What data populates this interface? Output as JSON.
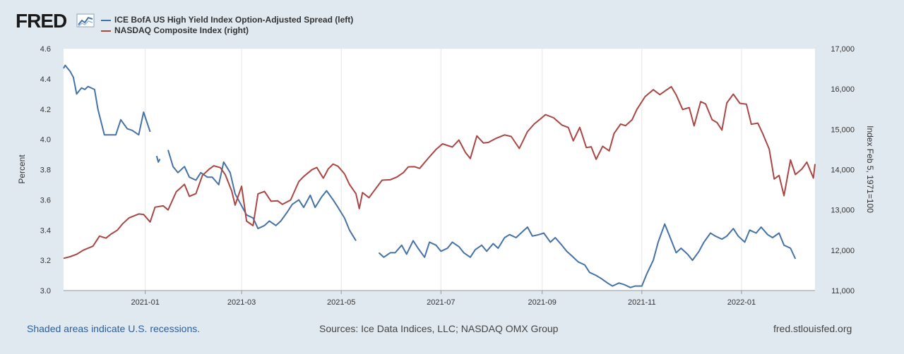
{
  "header": {
    "logo_text": "FRED",
    "logo_icon": "line-graph-icon"
  },
  "legend": [
    {
      "label": "ICE BofA US High Yield Index Option-Adjusted Spread (left)",
      "color": "#4572a7"
    },
    {
      "label": "NASDAQ Composite Index (right)",
      "color": "#aa4643"
    }
  ],
  "footer": {
    "recessions_note": "Shaded areas indicate U.S. recessions.",
    "sources": "Sources: Ice Data Indices, LLC; NASDAQ OMX Group",
    "site": "fred.stlouisfed.org"
  },
  "chart_data": {
    "type": "line",
    "x_range": [
      "2020-11-12",
      "2022-02-15"
    ],
    "x_ticks": [
      "2021-01",
      "2021-03",
      "2021-05",
      "2021-07",
      "2021-09",
      "2021-11",
      "2022-01"
    ],
    "y_left": {
      "label": "Percent",
      "range": [
        3.0,
        4.6
      ],
      "ticks": [
        "3.0",
        "3.2",
        "3.4",
        "3.6",
        "3.8",
        "4.0",
        "4.2",
        "4.4",
        "4.6"
      ]
    },
    "y_right": {
      "label": "Index Feb 5, 1971=100",
      "range": [
        11000,
        17000
      ],
      "ticks": [
        "11,000",
        "12,000",
        "13,000",
        "14,000",
        "15,000",
        "16,000",
        "17,000"
      ]
    },
    "grid": "vertical",
    "series": [
      {
        "name": "ICE BofA US High Yield Index Option-Adjusted Spread (left)",
        "axis": "left",
        "color": "#4572a7",
        "points": [
          [
            "2020-11-12",
            4.47
          ],
          [
            "2020-11-13",
            4.49
          ],
          [
            "2020-11-16",
            4.45
          ],
          [
            "2020-11-18",
            4.41
          ],
          [
            "2020-11-20",
            4.3
          ],
          [
            "2020-11-23",
            4.34
          ],
          [
            "2020-11-25",
            4.33
          ],
          [
            "2020-11-27",
            4.35
          ],
          [
            "2020-12-01",
            4.33
          ],
          [
            "2020-12-03",
            4.2
          ],
          [
            "2020-12-07",
            4.03
          ],
          [
            "2020-12-10",
            4.03
          ],
          [
            "2020-12-14",
            4.03
          ],
          [
            "2020-12-17",
            4.13
          ],
          [
            "2020-12-21",
            4.07
          ],
          [
            "2020-12-24",
            4.06
          ],
          [
            "2020-12-28",
            4.03
          ],
          [
            "2020-12-31",
            4.18
          ],
          [
            "2021-01-04",
            4.05
          ],
          null,
          [
            "2021-01-08",
            3.89
          ],
          [
            "2021-01-09",
            3.85
          ],
          [
            "2021-01-10",
            3.87
          ],
          null,
          [
            "2021-01-15",
            3.93
          ],
          [
            "2021-01-18",
            3.82
          ],
          [
            "2021-01-21",
            3.78
          ],
          [
            "2021-01-25",
            3.82
          ],
          [
            "2021-01-28",
            3.75
          ],
          [
            "2021-02-01",
            3.73
          ],
          [
            "2021-02-04",
            3.78
          ],
          [
            "2021-02-08",
            3.75
          ],
          [
            "2021-02-11",
            3.75
          ],
          [
            "2021-02-15",
            3.7
          ],
          [
            "2021-02-18",
            3.85
          ],
          [
            "2021-02-22",
            3.78
          ],
          [
            "2021-02-25",
            3.64
          ],
          [
            "2021-03-01",
            3.56
          ],
          [
            "2021-03-04",
            3.5
          ],
          [
            "2021-03-08",
            3.48
          ],
          [
            "2021-03-11",
            3.41
          ],
          [
            "2021-03-15",
            3.43
          ],
          [
            "2021-03-18",
            3.46
          ],
          [
            "2021-03-22",
            3.43
          ],
          [
            "2021-03-25",
            3.46
          ],
          [
            "2021-03-29",
            3.52
          ],
          [
            "2021-04-01",
            3.57
          ],
          [
            "2021-04-05",
            3.6
          ],
          [
            "2021-04-08",
            3.55
          ],
          [
            "2021-04-12",
            3.63
          ],
          [
            "2021-04-15",
            3.55
          ],
          [
            "2021-04-19",
            3.62
          ],
          [
            "2021-04-22",
            3.66
          ],
          [
            "2021-04-26",
            3.6
          ],
          [
            "2021-04-29",
            3.55
          ],
          [
            "2021-05-03",
            3.48
          ],
          [
            "2021-05-06",
            3.4
          ],
          [
            "2021-05-10",
            3.33
          ],
          null,
          [
            "2021-05-24",
            3.25
          ],
          [
            "2021-05-27",
            3.22
          ],
          [
            "2021-05-31",
            3.25
          ],
          [
            "2021-06-03",
            3.25
          ],
          [
            "2021-06-07",
            3.3
          ],
          [
            "2021-06-10",
            3.24
          ],
          [
            "2021-06-14",
            3.33
          ],
          [
            "2021-06-17",
            3.28
          ],
          [
            "2021-06-21",
            3.22
          ],
          [
            "2021-06-24",
            3.32
          ],
          [
            "2021-06-28",
            3.3
          ],
          [
            "2021-07-01",
            3.26
          ],
          [
            "2021-07-05",
            3.28
          ],
          [
            "2021-07-08",
            3.32
          ],
          [
            "2021-07-12",
            3.29
          ],
          [
            "2021-07-15",
            3.25
          ],
          [
            "2021-07-19",
            3.22
          ],
          [
            "2021-07-22",
            3.27
          ],
          [
            "2021-07-26",
            3.3
          ],
          [
            "2021-07-29",
            3.26
          ],
          [
            "2021-08-02",
            3.31
          ],
          [
            "2021-08-05",
            3.28
          ],
          [
            "2021-08-09",
            3.35
          ],
          [
            "2021-08-12",
            3.37
          ],
          [
            "2021-08-16",
            3.35
          ],
          [
            "2021-08-19",
            3.38
          ],
          [
            "2021-08-23",
            3.42
          ],
          [
            "2021-08-26",
            3.36
          ],
          [
            "2021-08-30",
            3.37
          ],
          [
            "2021-09-02",
            3.38
          ],
          [
            "2021-09-06",
            3.32
          ],
          [
            "2021-09-09",
            3.35
          ],
          [
            "2021-09-13",
            3.3
          ],
          [
            "2021-09-16",
            3.26
          ],
          [
            "2021-09-20",
            3.22
          ],
          [
            "2021-09-23",
            3.19
          ],
          [
            "2021-09-27",
            3.17
          ],
          [
            "2021-09-30",
            3.12
          ],
          [
            "2021-10-04",
            3.1
          ],
          [
            "2021-10-07",
            3.08
          ],
          [
            "2021-10-11",
            3.05
          ],
          [
            "2021-10-14",
            3.03
          ],
          [
            "2021-10-18",
            3.05
          ],
          [
            "2021-10-21",
            3.04
          ],
          [
            "2021-10-25",
            3.02
          ],
          [
            "2021-10-28",
            3.03
          ],
          [
            "2021-11-01",
            3.03
          ],
          [
            "2021-11-04",
            3.11
          ],
          [
            "2021-11-08",
            3.2
          ],
          [
            "2021-11-11",
            3.32
          ],
          [
            "2021-11-15",
            3.44
          ],
          [
            "2021-11-18",
            3.36
          ],
          [
            "2021-11-22",
            3.25
          ],
          [
            "2021-11-25",
            3.28
          ],
          [
            "2021-11-29",
            3.24
          ],
          [
            "2021-12-02",
            3.2
          ],
          [
            "2021-12-06",
            3.26
          ],
          [
            "2021-12-09",
            3.32
          ],
          [
            "2021-12-13",
            3.38
          ],
          [
            "2021-12-16",
            3.36
          ],
          [
            "2021-12-20",
            3.34
          ],
          [
            "2021-12-23",
            3.36
          ],
          [
            "2021-12-27",
            3.41
          ],
          [
            "2021-12-30",
            3.36
          ],
          [
            "2022-01-03",
            3.32
          ],
          [
            "2022-01-06",
            3.4
          ],
          [
            "2022-01-10",
            3.38
          ],
          [
            "2022-01-13",
            3.42
          ],
          [
            "2022-01-17",
            3.37
          ],
          [
            "2022-01-20",
            3.35
          ],
          [
            "2022-01-24",
            3.38
          ],
          [
            "2022-01-27",
            3.3
          ],
          [
            "2022-01-31",
            3.28
          ],
          [
            "2022-02-03",
            3.21
          ]
        ]
      },
      {
        "name": "NASDAQ Composite Index (right)",
        "axis": "right",
        "color": "#aa4643",
        "points": [
          [
            "2020-11-12",
            11800
          ],
          [
            "2020-11-16",
            11840
          ],
          [
            "2020-11-20",
            11900
          ],
          [
            "2020-11-24",
            12000
          ],
          [
            "2020-11-30",
            12100
          ],
          [
            "2020-12-04",
            12350
          ],
          [
            "2020-12-08",
            12300
          ],
          [
            "2020-12-11",
            12400
          ],
          [
            "2020-12-15",
            12500
          ],
          [
            "2020-12-18",
            12650
          ],
          [
            "2020-12-22",
            12800
          ],
          [
            "2020-12-28",
            12900
          ],
          [
            "2020-12-31",
            12888
          ],
          [
            "2021-01-04",
            12700
          ],
          [
            "2021-01-07",
            13067
          ],
          [
            "2021-01-12",
            13100
          ],
          [
            "2021-01-15",
            13000
          ],
          [
            "2021-01-20",
            13450
          ],
          [
            "2021-01-25",
            13635
          ],
          [
            "2021-01-28",
            13337
          ],
          [
            "2021-02-01",
            13403
          ],
          [
            "2021-02-05",
            13856
          ],
          [
            "2021-02-09",
            14007
          ],
          [
            "2021-02-12",
            14095
          ],
          [
            "2021-02-16",
            14047
          ],
          [
            "2021-02-19",
            13874
          ],
          [
            "2021-02-23",
            13465
          ],
          [
            "2021-02-25",
            13119
          ],
          [
            "2021-03-01",
            13588
          ],
          [
            "2021-03-04",
            12723
          ],
          [
            "2021-03-08",
            12609
          ],
          [
            "2021-03-11",
            13398
          ],
          [
            "2021-03-15",
            13459
          ],
          [
            "2021-03-19",
            13215
          ],
          [
            "2021-03-23",
            13227
          ],
          [
            "2021-03-26",
            13138
          ],
          [
            "2021-03-31",
            13246
          ],
          [
            "2021-04-05",
            13705
          ],
          [
            "2021-04-08",
            13829
          ],
          [
            "2021-04-13",
            13996
          ],
          [
            "2021-04-16",
            14052
          ],
          [
            "2021-04-20",
            13786
          ],
          [
            "2021-04-23",
            14016
          ],
          [
            "2021-04-26",
            14138
          ],
          [
            "2021-04-29",
            14082
          ],
          [
            "2021-05-03",
            13895
          ],
          [
            "2021-05-06",
            13633
          ],
          [
            "2021-05-10",
            13402
          ],
          [
            "2021-05-12",
            13031
          ],
          [
            "2021-05-14",
            13430
          ],
          [
            "2021-05-18",
            13303
          ],
          [
            "2021-05-21",
            13470
          ],
          [
            "2021-05-26",
            13738
          ],
          [
            "2021-05-31",
            13748
          ],
          [
            "2021-06-04",
            13814
          ],
          [
            "2021-06-08",
            13924
          ],
          [
            "2021-06-11",
            14069
          ],
          [
            "2021-06-15",
            14072
          ],
          [
            "2021-06-18",
            14030
          ],
          [
            "2021-06-23",
            14272
          ],
          [
            "2021-06-28",
            14500
          ],
          [
            "2021-07-02",
            14639
          ],
          [
            "2021-07-08",
            14559
          ],
          [
            "2021-07-12",
            14733
          ],
          [
            "2021-07-16",
            14427
          ],
          [
            "2021-07-19",
            14274
          ],
          [
            "2021-07-23",
            14837
          ],
          [
            "2021-07-27",
            14660
          ],
          [
            "2021-07-30",
            14673
          ],
          [
            "2021-08-04",
            14780
          ],
          [
            "2021-08-09",
            14860
          ],
          [
            "2021-08-13",
            14823
          ],
          [
            "2021-08-18",
            14525
          ],
          [
            "2021-08-23",
            14942
          ],
          [
            "2021-08-27",
            15129
          ],
          [
            "2021-08-31",
            15259
          ],
          [
            "2021-09-03",
            15363
          ],
          [
            "2021-09-08",
            15286
          ],
          [
            "2021-09-13",
            15105
          ],
          [
            "2021-09-17",
            15044
          ],
          [
            "2021-09-20",
            14713
          ],
          [
            "2021-09-24",
            15047
          ],
          [
            "2021-09-28",
            14546
          ],
          [
            "2021-10-01",
            14566
          ],
          [
            "2021-10-04",
            14255
          ],
          [
            "2021-10-08",
            14579
          ],
          [
            "2021-10-12",
            14465
          ],
          [
            "2021-10-15",
            14897
          ],
          [
            "2021-10-19",
            15129
          ],
          [
            "2021-10-22",
            15090
          ],
          [
            "2021-10-26",
            15235
          ],
          [
            "2021-10-29",
            15498
          ],
          [
            "2021-11-03",
            15811
          ],
          [
            "2021-11-08",
            15982
          ],
          [
            "2021-11-12",
            15860
          ],
          [
            "2021-11-16",
            15973
          ],
          [
            "2021-11-19",
            16057
          ],
          [
            "2021-11-22",
            15854
          ],
          [
            "2021-11-26",
            15491
          ],
          [
            "2021-11-30",
            15537
          ],
          [
            "2021-12-03",
            15085
          ],
          [
            "2021-12-07",
            15686
          ],
          [
            "2021-12-10",
            15630
          ],
          [
            "2021-12-14",
            15237
          ],
          [
            "2021-12-17",
            15169
          ],
          [
            "2021-12-20",
            14980
          ],
          [
            "2021-12-23",
            15653
          ],
          [
            "2021-12-27",
            15871
          ],
          [
            "2021-12-31",
            15645
          ],
          [
            "2022-01-04",
            15622
          ],
          [
            "2022-01-07",
            15124
          ],
          [
            "2022-01-11",
            15153
          ],
          [
            "2022-01-14",
            14893
          ],
          [
            "2022-01-18",
            14506
          ],
          [
            "2022-01-21",
            13768
          ],
          [
            "2022-01-24",
            13855
          ],
          [
            "2022-01-27",
            13352
          ],
          [
            "2022-01-31",
            14239
          ],
          [
            "2022-02-03",
            13878
          ],
          [
            "2022-02-07",
            14015
          ],
          [
            "2022-02-10",
            14185
          ],
          [
            "2022-02-14",
            13790
          ],
          [
            "2022-02-15",
            14139
          ]
        ]
      }
    ]
  }
}
